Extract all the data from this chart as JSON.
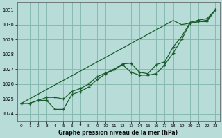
{
  "title": "Graphe pression niveau de la mer (hPa)",
  "bg_color": "#b8ddd8",
  "grid_color": "#88bbb0",
  "line_color": "#1a5c2a",
  "xlim": [
    -0.5,
    23.5
  ],
  "ylim": [
    1023.5,
    1031.5
  ],
  "xticks": [
    0,
    1,
    2,
    3,
    4,
    5,
    6,
    7,
    8,
    9,
    10,
    11,
    12,
    13,
    14,
    15,
    16,
    17,
    18,
    19,
    20,
    21,
    22,
    23
  ],
  "yticks": [
    1024,
    1025,
    1026,
    1027,
    1028,
    1029,
    1030,
    1031
  ],
  "series_straight": [
    1024.7,
    1025.01,
    1025.32,
    1025.63,
    1025.94,
    1026.25,
    1026.56,
    1026.87,
    1027.18,
    1027.49,
    1027.8,
    1028.11,
    1028.42,
    1028.73,
    1029.04,
    1029.35,
    1029.66,
    1029.97,
    1030.28,
    1030.0,
    1030.1,
    1030.2,
    1030.3,
    1031.0
  ],
  "series_upper": [
    1024.7,
    1024.7,
    1024.9,
    1025.1,
    1025.1,
    1025.0,
    1025.5,
    1025.7,
    1026.0,
    1026.5,
    1026.75,
    1027.0,
    1027.35,
    1027.4,
    1026.8,
    1026.7,
    1027.3,
    1027.5,
    1028.5,
    1029.2,
    1030.15,
    1030.3,
    1030.4,
    1031.0
  ],
  "series_lower": [
    1024.7,
    1024.7,
    1024.9,
    1024.9,
    1024.3,
    1024.3,
    1025.3,
    1025.5,
    1025.8,
    1026.3,
    1026.7,
    1026.95,
    1027.3,
    1026.8,
    1026.6,
    1026.6,
    1026.7,
    1027.3,
    1028.1,
    1029.0,
    1030.1,
    1030.2,
    1030.2,
    1031.0
  ]
}
